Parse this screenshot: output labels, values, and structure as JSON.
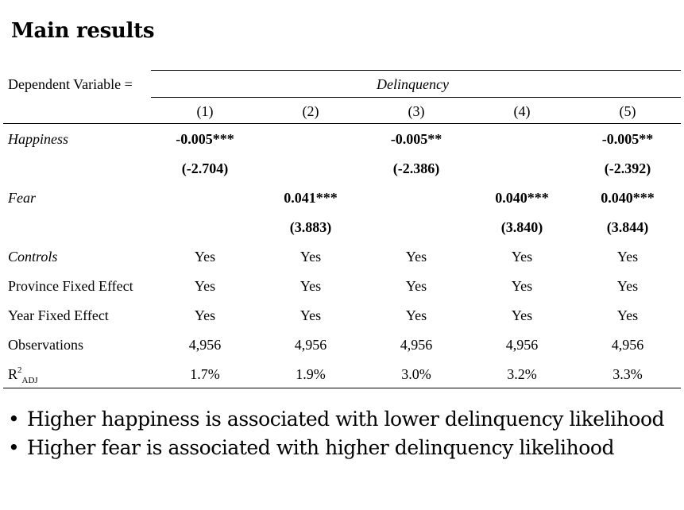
{
  "title": "Main results",
  "table": {
    "dep_var_label": "Dependent Variable =",
    "dep_var": "Delinquency",
    "columns": [
      "(1)",
      "(2)",
      "(3)",
      "(4)",
      "(5)"
    ],
    "happiness": {
      "label": "Happiness",
      "coef": [
        "-0.005***",
        "",
        "-0.005**",
        "",
        "-0.005**"
      ],
      "tstat": [
        "(-2.704)",
        "",
        "(-2.386)",
        "",
        "(-2.392)"
      ]
    },
    "fear": {
      "label": "Fear",
      "coef": [
        "",
        "0.041***",
        "",
        "0.040***",
        "0.040***"
      ],
      "tstat": [
        "",
        "(3.883)",
        "",
        "(3.840)",
        "(3.844)"
      ]
    },
    "controls": {
      "label": "Controls",
      "values": [
        "Yes",
        "Yes",
        "Yes",
        "Yes",
        "Yes"
      ]
    },
    "province_fe": {
      "label": "Province Fixed Effect",
      "values": [
        "Yes",
        "Yes",
        "Yes",
        "Yes",
        "Yes"
      ]
    },
    "year_fe": {
      "label": "Year Fixed Effect",
      "values": [
        "Yes",
        "Yes",
        "Yes",
        "Yes",
        "Yes"
      ]
    },
    "observations": {
      "label": "Observations",
      "values": [
        "4,956",
        "4,956",
        "4,956",
        "4,956",
        "4,956"
      ]
    },
    "r2": {
      "label_main": "R",
      "label_sup": "2",
      "label_sub": "ADJ",
      "values": [
        "1.7%",
        "1.9%",
        "3.0%",
        "3.2%",
        "3.3%"
      ]
    }
  },
  "bullets": [
    "Higher happiness is associated with lower delinquency likelihood",
    "Higher fear is associated with higher delinquency likelihood"
  ],
  "bullet_char": "•"
}
